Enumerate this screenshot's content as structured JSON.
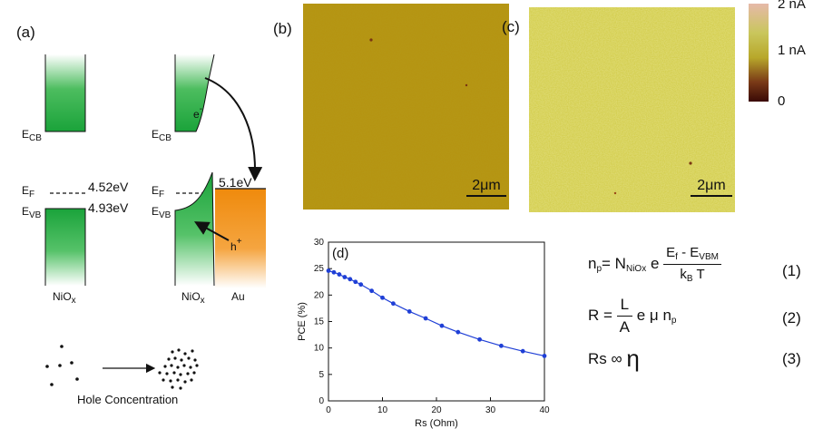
{
  "panel_labels": {
    "a": "(a)",
    "b": "(b)",
    "c": "(c)",
    "d": "(d)"
  },
  "band_diagram": {
    "left": {
      "ecb": "E",
      "ecb_sub": "CB",
      "ef": "E",
      "ef_sub": "F",
      "evb": "E",
      "evb_sub": "VB",
      "ef_value": "4.52eV",
      "evb_value": "4.93eV",
      "material": "NiO",
      "material_sub": "x"
    },
    "right": {
      "ecb": "E",
      "ecb_sub": "CB",
      "ef": "E",
      "ef_sub": "F",
      "evb": "E",
      "evb_sub": "VB",
      "electron": "e",
      "electron_sup": "-",
      "hole": "h",
      "hole_sup": "+",
      "metal_level": "5.1eV",
      "material": "NiO",
      "material_sub": "x",
      "metal": "Au"
    },
    "hole_concentration_label": "Hole Concentration"
  },
  "afm": {
    "scale_bar_b": "2μm",
    "scale_bar_c": "2μm"
  },
  "colorbar": {
    "ticks": [
      "2 nA",
      "1 nA",
      "0"
    ]
  },
  "chart_data": {
    "type": "line",
    "title": "",
    "xlabel": "Rs (Ohm)",
    "ylabel": "PCE (%)",
    "xlim": [
      0,
      40
    ],
    "ylim": [
      0,
      30
    ],
    "x_ticks": [
      "0",
      "10",
      "20",
      "30",
      "40"
    ],
    "y_ticks": [
      "0",
      "5",
      "10",
      "15",
      "20",
      "25",
      "30"
    ],
    "color": "#1f3fd6",
    "series": [
      {
        "x": [
          0,
          1,
          2,
          3,
          4,
          5,
          6,
          8,
          10,
          12,
          15,
          18,
          21,
          24,
          28,
          32,
          36,
          40
        ],
        "values": [
          24.6,
          24.3,
          23.9,
          23.4,
          23.0,
          22.5,
          22.0,
          20.8,
          19.5,
          18.4,
          16.9,
          15.6,
          14.2,
          13.0,
          11.6,
          10.4,
          9.4,
          8.5
        ]
      }
    ]
  },
  "equations": {
    "eq1": {
      "n": "n",
      "n_sub": "p",
      "eq": "= N",
      "N_sub": "NiOx",
      "e": "e",
      "num": "E",
      "num_sub_f": "f",
      "num_mid": " - E",
      "num_sub_vbm": "VBM",
      "den": "k",
      "den_sub": "B",
      "den_T": " T",
      "label": "(1)"
    },
    "eq2": {
      "R": "R =",
      "num": "L",
      "den": "A",
      "rest": "e μ n",
      "rest_sub": "p",
      "label": "(2)"
    },
    "eq3": {
      "lhs": "Rs ∞ ",
      "eta": "η",
      "label": "(3)"
    }
  }
}
